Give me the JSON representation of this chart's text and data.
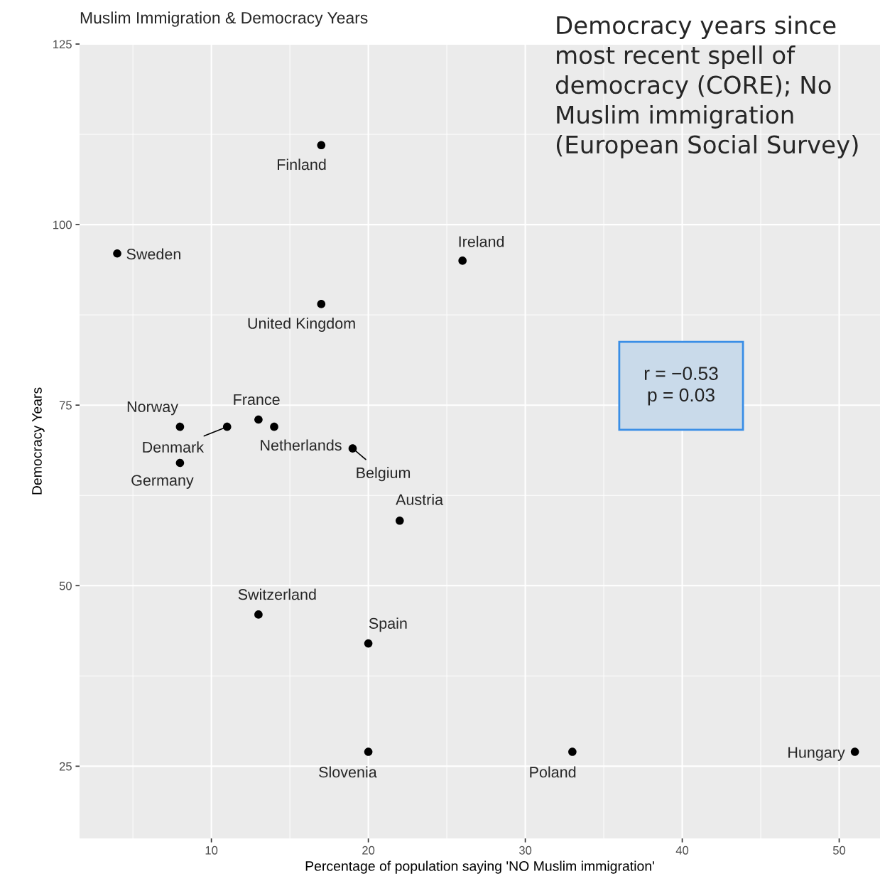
{
  "chart_data": {
    "type": "scatter",
    "title": "Muslim Immigration & Democracy Years",
    "xlabel": "Percentage of population saying 'NO Muslim immigration'",
    "ylabel": "Democracy Years",
    "series": [
      {
        "color": "#000000",
        "x": [
          17,
          4,
          26,
          17,
          8,
          11,
          13,
          14,
          19,
          8,
          22,
          13,
          20,
          20,
          33,
          51
        ],
        "values": [
          111,
          96,
          95,
          89,
          72,
          72,
          73,
          72,
          69,
          67,
          59,
          46,
          42,
          27,
          27,
          27
        ]
      }
    ],
    "annotations": [
      {
        "text": "Finland",
        "x": 17,
        "y": 111
      },
      {
        "text": "Sweden",
        "x": 4,
        "y": 96
      },
      {
        "text": "Ireland",
        "x": 26,
        "y": 95
      },
      {
        "text": "United Kingdom",
        "x": 17,
        "y": 89
      },
      {
        "text": "Norway",
        "x": 8,
        "y": 72
      },
      {
        "text": "Denmark",
        "x": 11,
        "y": 72
      },
      {
        "text": "France",
        "x": 13,
        "y": 73
      },
      {
        "text": "Netherlands",
        "x": 14,
        "y": 72
      },
      {
        "text": "Belgium",
        "x": 19,
        "y": 69
      },
      {
        "text": "Germany",
        "x": 8,
        "y": 67
      },
      {
        "text": "Austria",
        "x": 22,
        "y": 59
      },
      {
        "text": "Switzerland",
        "x": 13,
        "y": 46
      },
      {
        "text": "Spain",
        "x": 20,
        "y": 42
      },
      {
        "text": "Slovenia",
        "x": 20,
        "y": 27
      },
      {
        "text": "Poland",
        "x": 33,
        "y": 27
      },
      {
        "text": "Hungary",
        "x": 51,
        "y": 27
      },
      "r = −0.53\np = 0.03",
      "Democracy years since most recent spell of democracy (CORE); No Muslim immigration (European Social Survey)"
    ],
    "xlim": [
      1.6,
      52.6
    ],
    "xticks": [
      10,
      20,
      30,
      40,
      50
    ],
    "ylim": [
      15,
      125
    ],
    "yticks": [
      25,
      50,
      75,
      100,
      125
    ],
    "grid": true,
    "marker": "circle"
  }
}
